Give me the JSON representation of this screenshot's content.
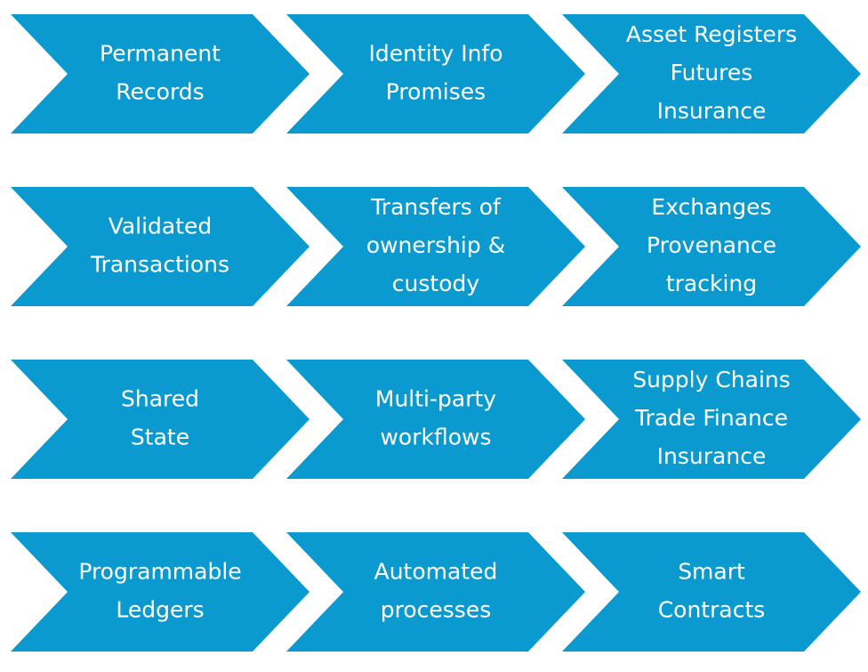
{
  "rows": [
    {
      "chevrons": [
        {
          "lines": [
            "Permanent",
            "Records"
          ]
        },
        {
          "lines": [
            "Identity Info",
            "Promises"
          ]
        },
        {
          "lines": [
            "Asset Registers",
            "Futures",
            "Insurance"
          ]
        }
      ]
    },
    {
      "chevrons": [
        {
          "lines": [
            "Validated",
            "Transactions"
          ]
        },
        {
          "lines": [
            "Transfers of",
            "ownership &",
            "custody"
          ]
        },
        {
          "lines": [
            "Exchanges",
            "Provenance",
            "tracking"
          ]
        }
      ]
    },
    {
      "chevrons": [
        {
          "lines": [
            "Shared",
            "State"
          ]
        },
        {
          "lines": [
            "Multi-party",
            "workflows"
          ]
        },
        {
          "lines": [
            "Supply Chains",
            "Trade Finance",
            "Insurance"
          ]
        }
      ]
    },
    {
      "chevrons": [
        {
          "lines": [
            "Programmable",
            "Ledgers"
          ]
        },
        {
          "lines": [
            "Automated",
            "processes"
          ]
        },
        {
          "lines": [
            "Smart",
            "Contracts"
          ]
        }
      ]
    }
  ],
  "colors": {
    "chevron_fill": "#0a9ad0",
    "text": "#ffffff",
    "background": "#ffffff"
  }
}
